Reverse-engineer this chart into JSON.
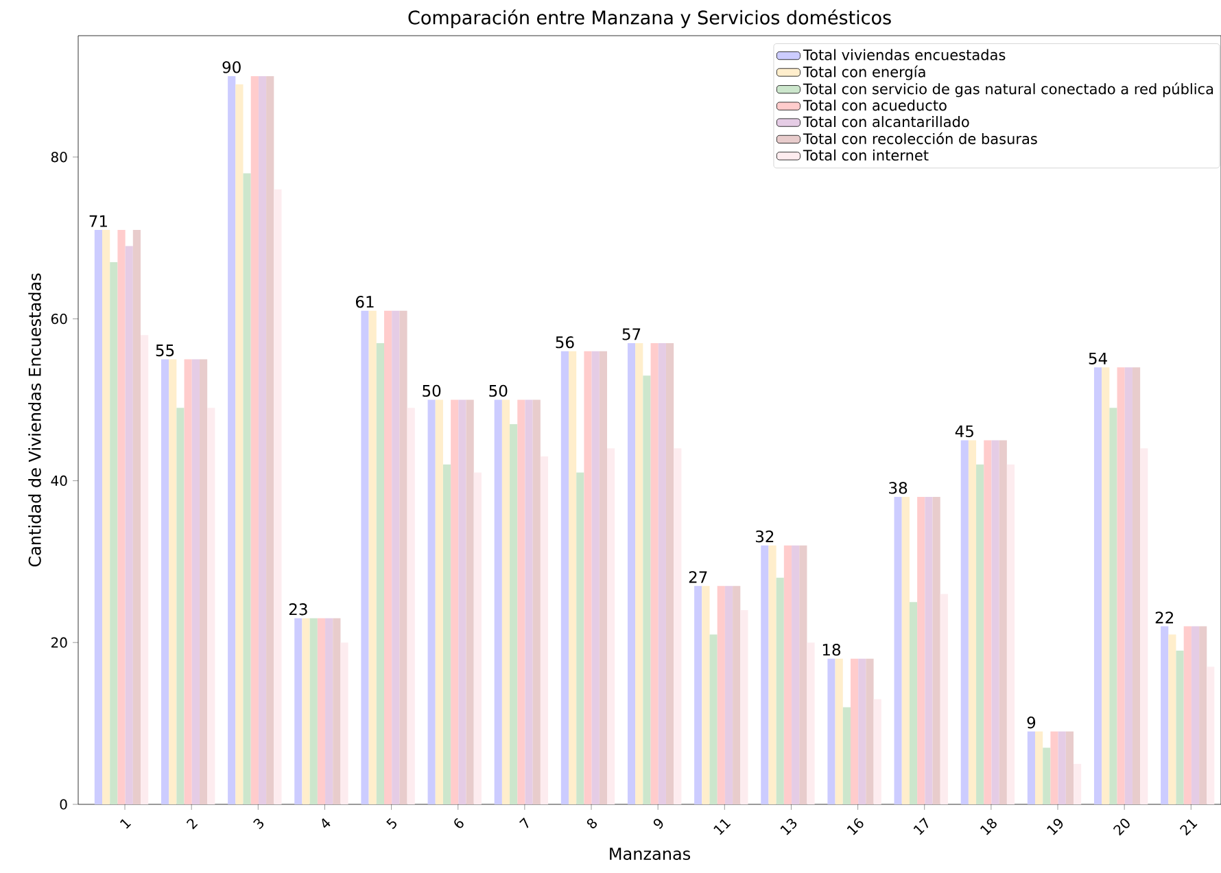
{
  "chart_data": {
    "type": "bar",
    "title": "Comparación entre Manzana y Servicios domésticos",
    "xlabel": "Manzanas",
    "ylabel": "Cantidad de Viviendas Encuestadas",
    "categories": [
      "1",
      "2",
      "3",
      "4",
      "5",
      "6",
      "7",
      "8",
      "9",
      "11",
      "13",
      "16",
      "17",
      "18",
      "19",
      "20",
      "21"
    ],
    "series": [
      {
        "name": "Total viviendas encuestadas",
        "color": "#ccccff",
        "values": [
          71,
          55,
          90,
          23,
          61,
          50,
          50,
          56,
          57,
          27,
          32,
          18,
          38,
          45,
          9,
          54,
          22
        ],
        "value_labels": [
          "71",
          "55",
          "90",
          "23",
          "61",
          "50",
          "50",
          "56",
          "57",
          "27",
          "32",
          "18",
          "38",
          "45",
          "9",
          "54",
          "22"
        ]
      },
      {
        "name": "Total con energía",
        "color": "#ffeecc",
        "values": [
          71,
          55,
          89,
          23,
          61,
          50,
          50,
          56,
          57,
          27,
          32,
          18,
          38,
          45,
          9,
          54,
          21
        ]
      },
      {
        "name": "Total con servicio de gas natural conectado a red pública",
        "color": "#cce6cc",
        "values": [
          67,
          49,
          78,
          23,
          57,
          42,
          47,
          41,
          53,
          21,
          28,
          12,
          25,
          42,
          7,
          49,
          19
        ]
      },
      {
        "name": "Total con acueducto",
        "color": "#ffcccc",
        "values": [
          71,
          55,
          90,
          23,
          61,
          50,
          50,
          56,
          57,
          27,
          32,
          18,
          38,
          45,
          9,
          54,
          22
        ]
      },
      {
        "name": "Total con alcantarillado",
        "color": "#e5cce5",
        "values": [
          69,
          55,
          90,
          23,
          61,
          50,
          50,
          56,
          57,
          27,
          32,
          18,
          38,
          45,
          9,
          54,
          22
        ]
      },
      {
        "name": "Total con recolección de basuras",
        "color": "#e8cccc",
        "values": [
          71,
          55,
          90,
          23,
          61,
          50,
          50,
          56,
          57,
          27,
          32,
          18,
          38,
          45,
          9,
          54,
          22
        ]
      },
      {
        "name": "Total con internet",
        "color": "#fdecef",
        "values": [
          58,
          49,
          76,
          20,
          49,
          41,
          43,
          44,
          44,
          24,
          20,
          13,
          26,
          42,
          5,
          44,
          17
        ]
      }
    ],
    "ylim": [
      0,
      95
    ],
    "yticks": [
      0,
      20,
      40,
      60,
      80
    ],
    "grid": false,
    "legend": "top right"
  }
}
